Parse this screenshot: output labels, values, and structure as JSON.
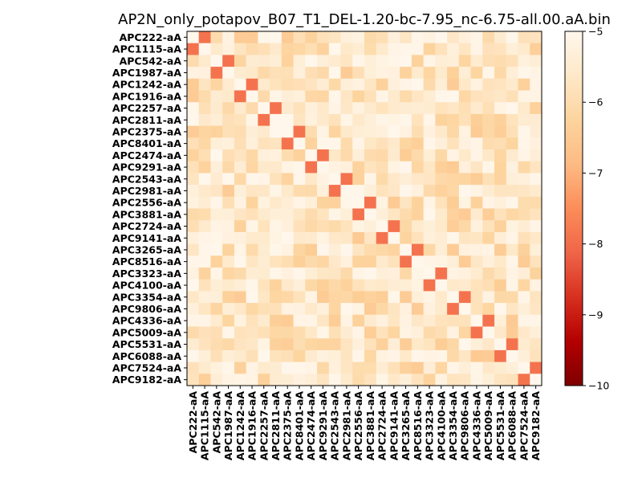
{
  "chart_data": {
    "type": "heatmap",
    "title": "AP2N_only_potapov_B07_T1_DEL-1.20-bc-7.95_nc-6.75-all.00.aA.bin",
    "xlabel": "",
    "ylabel": "",
    "labels": [
      "APC222-aA",
      "APC1115-aA",
      "APC542-aA",
      "APC1987-aA",
      "APC1242-aA",
      "APC1916-aA",
      "APC2257-aA",
      "APC2811-aA",
      "APC2375-aA",
      "APC8401-aA",
      "APC2474-aA",
      "APC9291-aA",
      "APC2543-aA",
      "APC2981-aA",
      "APC2556-aA",
      "APC3881-aA",
      "APC2724-aA",
      "APC9141-aA",
      "APC3265-aA",
      "APC8516-aA",
      "APC3323-aA",
      "APC4100-aA",
      "APC3354-aA",
      "APC9806-aA",
      "APC4336-aA",
      "APC5009-aA",
      "APC5531-aA",
      "APC6088-aA",
      "APC7524-aA",
      "APC9182-aA"
    ],
    "pairs": [
      [
        0,
        1
      ],
      [
        2,
        3
      ],
      [
        4,
        5
      ],
      [
        6,
        7
      ],
      [
        8,
        9
      ],
      [
        10,
        11
      ],
      [
        12,
        13
      ],
      [
        14,
        15
      ],
      [
        16,
        17
      ],
      [
        18,
        19
      ],
      [
        20,
        21
      ],
      [
        22,
        23
      ],
      [
        24,
        25
      ],
      [
        26,
        27
      ],
      [
        28,
        29
      ]
    ],
    "pair_value": -7.9,
    "background_range": [
      -6.5,
      -5.0
    ],
    "colorbar": {
      "min": -10,
      "max": -5,
      "ticks": [
        -5,
        -6,
        -7,
        -8,
        -9,
        -10
      ],
      "colormap": "OrRd_r",
      "stops": [
        "#7f0000",
        "#b30000",
        "#d7301f",
        "#ef6548",
        "#fc8d59",
        "#fdbb84",
        "#fdd49e",
        "#fee8c8",
        "#fff7ec"
      ]
    }
  }
}
